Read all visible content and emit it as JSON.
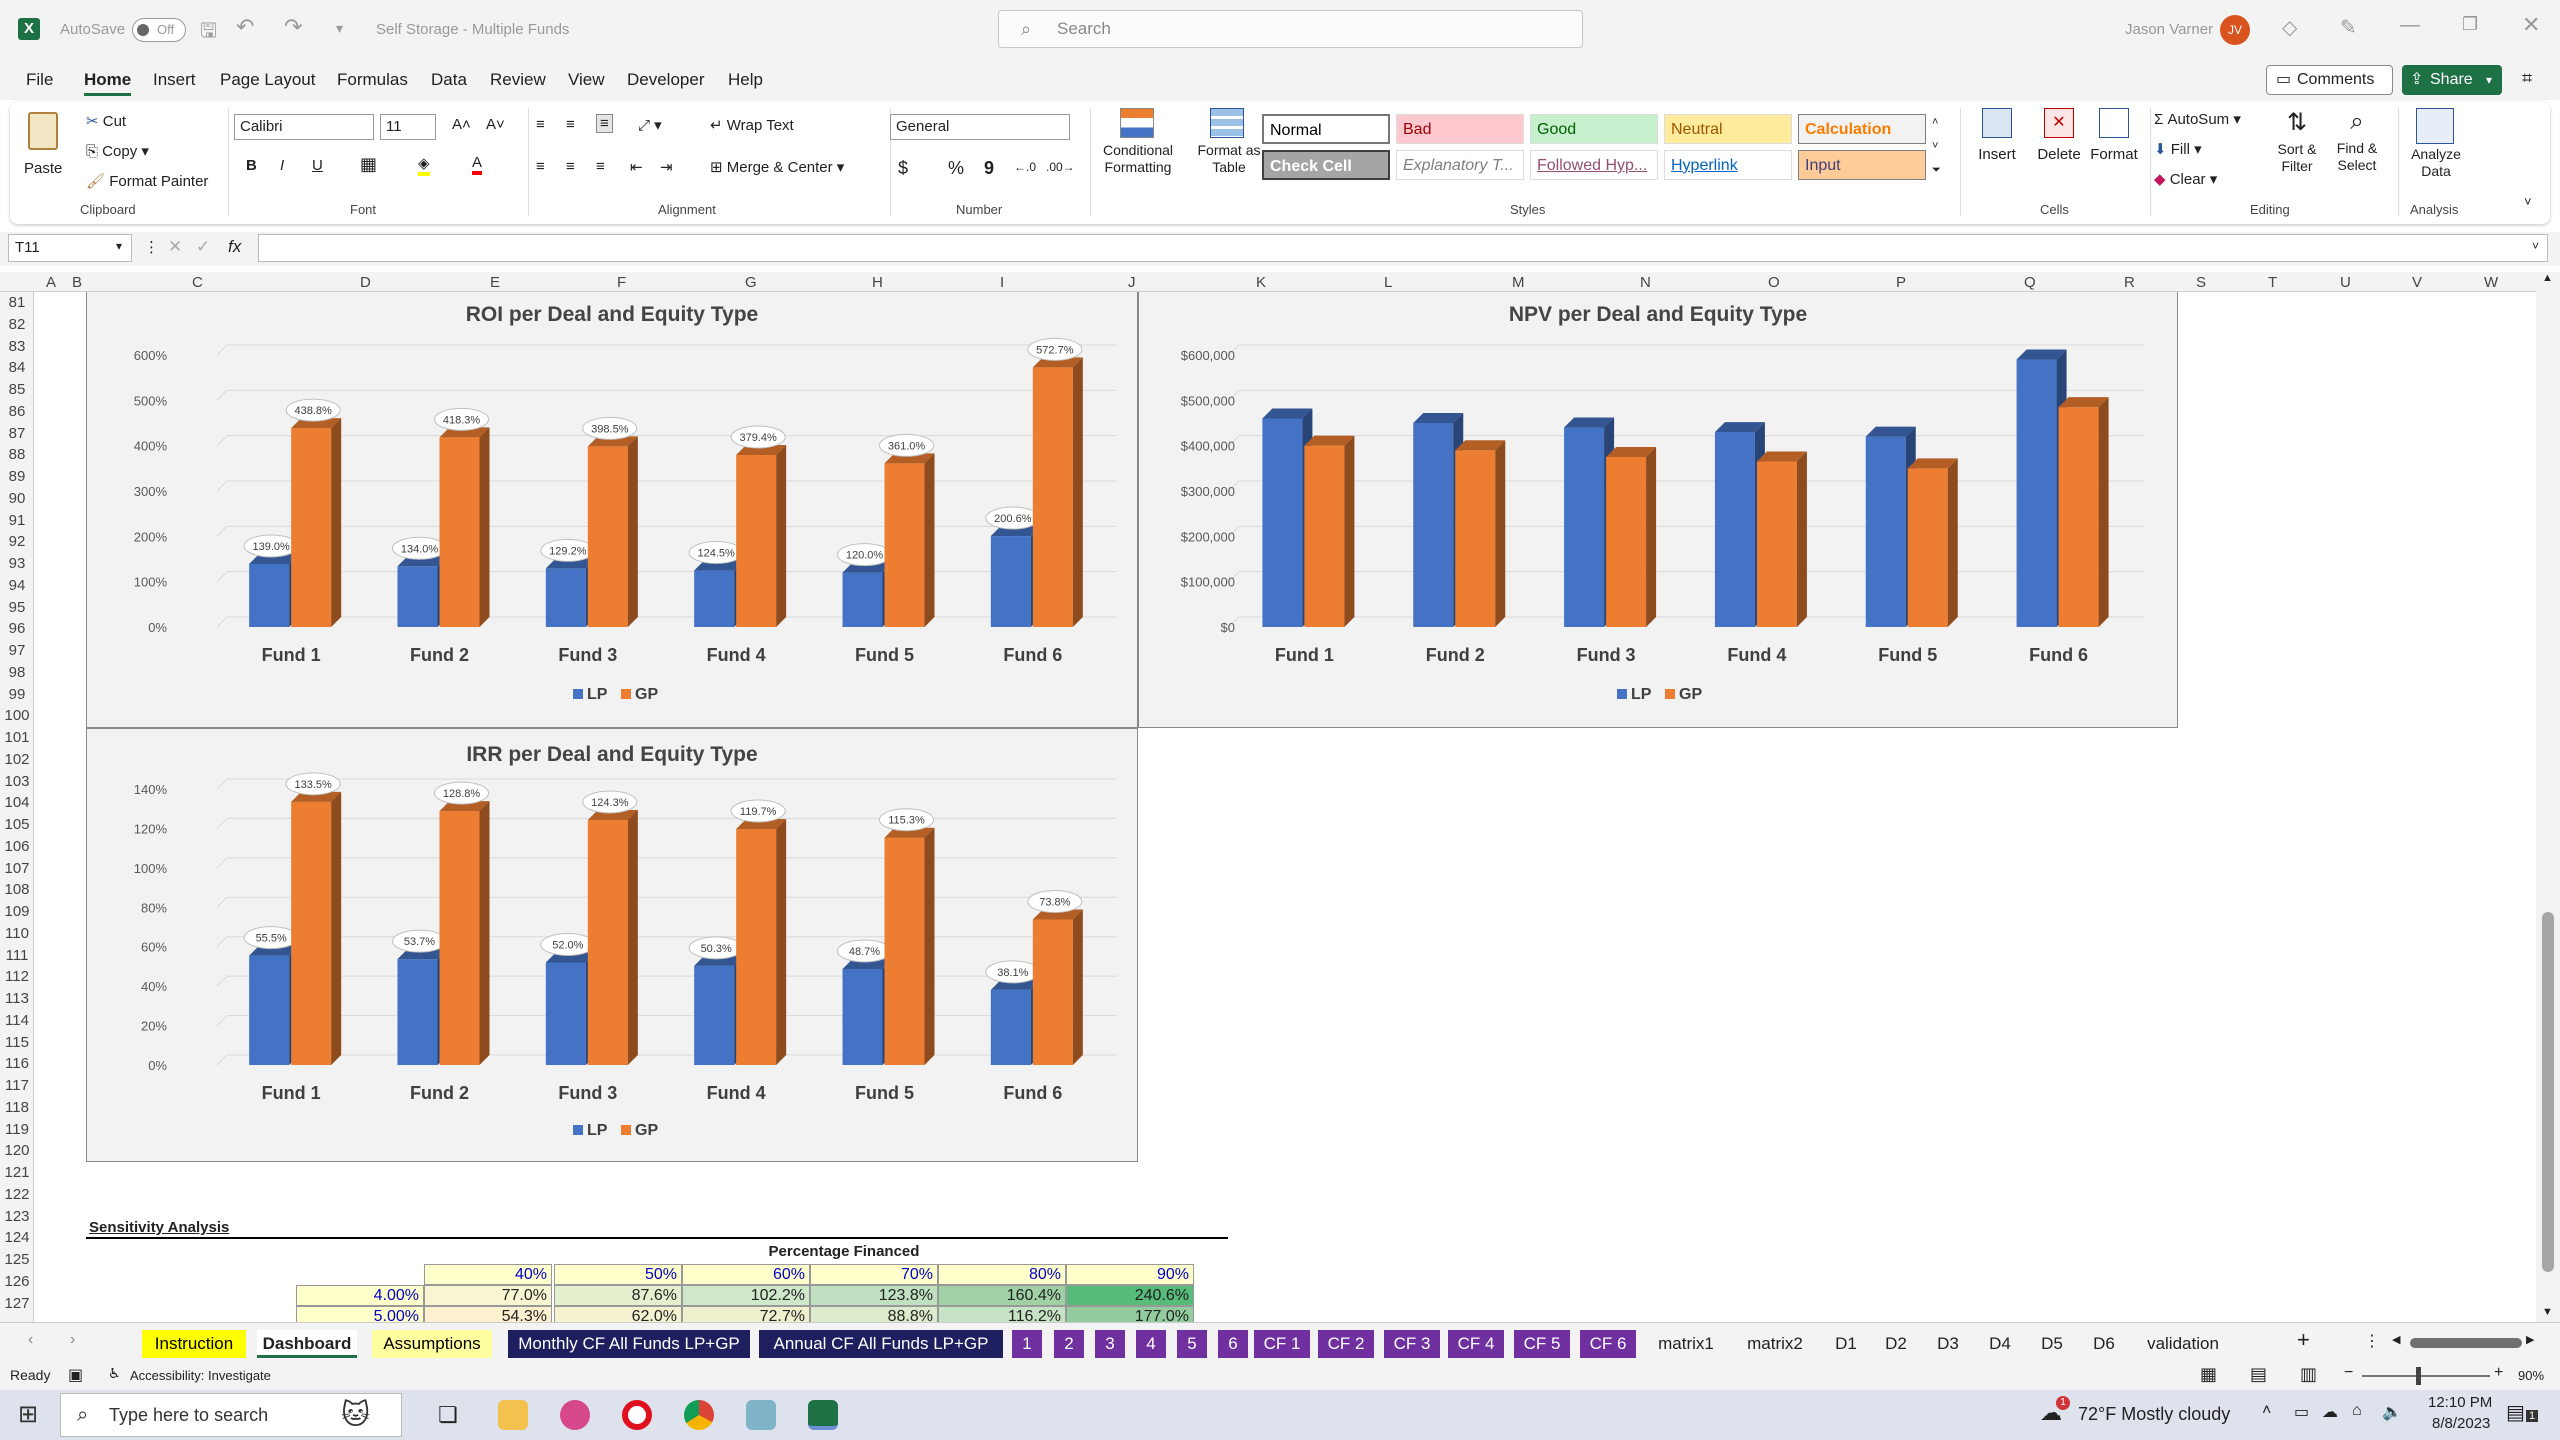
{
  "app": {
    "autosave_label": "AutoSave",
    "autosave_state": "Off",
    "doc_title": "Self Storage - Multiple Funds",
    "search_placeholder": "Search",
    "user_name": "Jason Varner",
    "user_initials": "JV"
  },
  "menu": [
    "File",
    "Home",
    "Insert",
    "Page Layout",
    "Formulas",
    "Data",
    "Review",
    "View",
    "Developer",
    "Help"
  ],
  "menu_active": "Home",
  "actions": {
    "comments": "Comments",
    "share": "Share"
  },
  "ribbon": {
    "clipboard": {
      "paste": "Paste",
      "cut": "Cut",
      "copy": "Copy",
      "format_painter": "Format Painter",
      "group": "Clipboard"
    },
    "font": {
      "name": "Calibri",
      "size": "11",
      "group": "Font",
      "bold": "B",
      "italic": "I",
      "underline": "U"
    },
    "alignment": {
      "wrap": "Wrap Text",
      "merge": "Merge & Center",
      "group": "Alignment"
    },
    "number": {
      "format": "General",
      "group": "Number",
      "dollar": "$",
      "percent": "%",
      "comma": "9"
    },
    "styles": {
      "conditional": "Conditional Formatting",
      "format_table": "Format as Table",
      "group": "Styles",
      "cells": [
        {
          "label": "Normal",
          "bg": "#ffffff",
          "fg": "#000000"
        },
        {
          "label": "Bad",
          "bg": "#ffc7ce",
          "fg": "#9c0006"
        },
        {
          "label": "Good",
          "bg": "#c6efce",
          "fg": "#006100"
        },
        {
          "label": "Neutral",
          "bg": "#ffeb9c",
          "fg": "#9c5700"
        },
        {
          "label": "Calculation",
          "bg": "#f2f2f2",
          "fg": "#fa7d00"
        },
        {
          "label": "Check Cell",
          "bg": "#a5a5a5",
          "fg": "#ffffff"
        },
        {
          "label": "Explanatory T...",
          "bg": "#ffffff",
          "fg": "#7f7f7f"
        },
        {
          "label": "Followed Hyp...",
          "bg": "#ffffff",
          "fg": "#954f72"
        },
        {
          "label": "Hyperlink",
          "bg": "#ffffff",
          "fg": "#0563c1"
        },
        {
          "label": "Input",
          "bg": "#ffcc99",
          "fg": "#3f3f76"
        }
      ]
    },
    "cells": {
      "insert": "Insert",
      "delete": "Delete",
      "format": "Format",
      "group": "Cells"
    },
    "editing": {
      "autosum": "AutoSum",
      "fill": "Fill",
      "clear": "Clear",
      "sort": "Sort & Filter",
      "find": "Find & Select",
      "group": "Editing"
    },
    "analysis": {
      "analyze": "Analyze Data",
      "group": "Analysis"
    }
  },
  "formula_bar": {
    "name_box": "T11",
    "fx": "fx",
    "content": ""
  },
  "columns": [
    "A",
    "B",
    "C",
    "D",
    "E",
    "F",
    "G",
    "H",
    "I",
    "J",
    "K",
    "L",
    "M",
    "N",
    "O",
    "P",
    "Q",
    "R",
    "S",
    "T",
    "U",
    "V",
    "W"
  ],
  "rows": [
    "81",
    "82",
    "83",
    "84",
    "85",
    "86",
    "87",
    "88",
    "89",
    "90",
    "91",
    "92",
    "93",
    "94",
    "95",
    "96",
    "97",
    "98",
    "99",
    "100",
    "101",
    "102",
    "103",
    "104",
    "105",
    "106",
    "107",
    "108",
    "109",
    "110",
    "111",
    "112",
    "113",
    "114",
    "115",
    "116",
    "117",
    "118",
    "119",
    "120",
    "121",
    "122",
    "123",
    "124",
    "125",
    "126",
    "127"
  ],
  "chart_data": [
    {
      "type": "bar",
      "title": "ROI per Deal and Equity Type",
      "categories": [
        "Fund 1",
        "Fund 2",
        "Fund 3",
        "Fund 4",
        "Fund 5",
        "Fund 6"
      ],
      "series": [
        {
          "name": "LP",
          "color": "#4472c4",
          "values": [
            139.0,
            134.0,
            129.2,
            124.5,
            120.0,
            200.6
          ]
        },
        {
          "name": "GP",
          "color": "#ed7d31",
          "values": [
            438.8,
            418.3,
            398.5,
            379.4,
            361.0,
            572.7
          ]
        }
      ],
      "data_labels": {
        "LP": [
          "139.0%",
          "134.0%",
          "129.2%",
          "124.5%",
          "120.0%",
          "200.6%"
        ],
        "GP": [
          "438.8%",
          "418.3%",
          "398.5%",
          "379.4%",
          "361.0%",
          "572.7%"
        ]
      },
      "yticks": [
        "0%",
        "100%",
        "200%",
        "300%",
        "400%",
        "500%",
        "600%"
      ],
      "ylim": [
        0,
        600
      ],
      "legend": "bottom"
    },
    {
      "type": "bar",
      "title": "NPV per Deal and Equity Type",
      "categories": [
        "Fund 1",
        "Fund 2",
        "Fund 3",
        "Fund 4",
        "Fund 5",
        "Fund 6"
      ],
      "series": [
        {
          "name": "LP",
          "color": "#4472c4",
          "values": [
            460000,
            450000,
            440000,
            430000,
            420000,
            590000
          ]
        },
        {
          "name": "GP",
          "color": "#ed7d31",
          "values": [
            400000,
            390000,
            375000,
            365000,
            350000,
            485000
          ]
        }
      ],
      "yticks": [
        "$0",
        "$100,000",
        "$200,000",
        "$300,000",
        "$400,000",
        "$500,000",
        "$600,000"
      ],
      "ylim": [
        0,
        600000
      ],
      "legend": "bottom"
    },
    {
      "type": "bar",
      "title": "IRR per Deal and Equity Type",
      "categories": [
        "Fund 1",
        "Fund 2",
        "Fund 3",
        "Fund 4",
        "Fund 5",
        "Fund 6"
      ],
      "series": [
        {
          "name": "LP",
          "color": "#4472c4",
          "values": [
            55.5,
            53.7,
            52.0,
            50.3,
            48.7,
            38.1
          ]
        },
        {
          "name": "GP",
          "color": "#ed7d31",
          "values": [
            133.5,
            128.8,
            124.3,
            119.7,
            115.3,
            73.8
          ]
        }
      ],
      "data_labels": {
        "LP": [
          "55.5%",
          "53.7%",
          "52.0%",
          "50.3%",
          "48.7%",
          "38.1%"
        ],
        "GP": [
          "133.5%",
          "128.8%",
          "124.3%",
          "119.7%",
          "115.3%",
          "73.8%"
        ]
      },
      "yticks": [
        "0%",
        "20%",
        "40%",
        "60%",
        "80%",
        "100%",
        "120%",
        "140%"
      ],
      "ylim": [
        0,
        140
      ],
      "legend": "bottom"
    }
  ],
  "sensitivity": {
    "title": "Sensitivity Analysis",
    "header": "Percentage Financed",
    "columns": [
      "40%",
      "50%",
      "60%",
      "70%",
      "80%",
      "90%"
    ],
    "rows": [
      {
        "label": "4.00%",
        "values": [
          "77.0%",
          "87.6%",
          "102.2%",
          "123.8%",
          "160.4%",
          "240.6%"
        ],
        "colors": [
          "#f8f6d2",
          "#e4efce",
          "#d0e8ca",
          "#bfe0c1",
          "#9fd1a5",
          "#57bb7a"
        ]
      },
      {
        "label": "5.00%",
        "values": [
          "54.3%",
          "62.0%",
          "72.7%",
          "88.8%",
          "116.2%",
          "177.0%"
        ],
        "colors": [
          "#fdf1d0",
          "#f5f2cf",
          "#eef0ce",
          "#dcebcc",
          "#c7e3c5",
          "#93cd9f"
        ]
      }
    ]
  },
  "tabs": [
    {
      "label": "Instruction",
      "bg": "#ffff00",
      "fg": "#000000"
    },
    {
      "label": "Dashboard",
      "bg": "#ffffff",
      "fg": "#1e7145",
      "active": true
    },
    {
      "label": "Assumptions",
      "bg": "#ffffa0",
      "fg": "#000000"
    },
    {
      "label": "Monthly CF All Funds LP+GP",
      "bg": "#1f1f5f",
      "fg": "#ffffff"
    },
    {
      "label": "Annual CF All Funds LP+GP",
      "bg": "#1f1f5f",
      "fg": "#ffffff"
    },
    {
      "label": "1",
      "bg": "#7030a0",
      "fg": "#ffffff"
    },
    {
      "label": "2",
      "bg": "#7030a0",
      "fg": "#ffffff"
    },
    {
      "label": "3",
      "bg": "#7030a0",
      "fg": "#ffffff"
    },
    {
      "label": "4",
      "bg": "#7030a0",
      "fg": "#ffffff"
    },
    {
      "label": "5",
      "bg": "#7030a0",
      "fg": "#ffffff"
    },
    {
      "label": "6",
      "bg": "#7030a0",
      "fg": "#ffffff"
    },
    {
      "label": "CF 1",
      "bg": "#7030a0",
      "fg": "#ffffff"
    },
    {
      "label": "CF 2",
      "bg": "#7030a0",
      "fg": "#ffffff"
    },
    {
      "label": "CF 3",
      "bg": "#7030a0",
      "fg": "#ffffff"
    },
    {
      "label": "CF 4",
      "bg": "#7030a0",
      "fg": "#ffffff"
    },
    {
      "label": "CF 5",
      "bg": "#7030a0",
      "fg": "#ffffff"
    },
    {
      "label": "CF 6",
      "bg": "#7030a0",
      "fg": "#ffffff"
    },
    {
      "label": "matrix1",
      "bg": "transparent",
      "fg": "#222222"
    },
    {
      "label": "matrix2",
      "bg": "transparent",
      "fg": "#222222"
    },
    {
      "label": "D1",
      "bg": "transparent",
      "fg": "#222222"
    },
    {
      "label": "D2",
      "bg": "transparent",
      "fg": "#222222"
    },
    {
      "label": "D3",
      "bg": "transparent",
      "fg": "#222222"
    },
    {
      "label": "D4",
      "bg": "transparent",
      "fg": "#222222"
    },
    {
      "label": "D5",
      "bg": "transparent",
      "fg": "#222222"
    },
    {
      "label": "D6",
      "bg": "transparent",
      "fg": "#222222"
    },
    {
      "label": "validation",
      "bg": "transparent",
      "fg": "#222222"
    }
  ],
  "status": {
    "ready": "Ready",
    "accessibility": "Accessibility: Investigate",
    "zoom": "90%"
  },
  "taskbar": {
    "search_placeholder": "Type here to search",
    "weather": "72°F  Mostly cloudy",
    "time": "12:10 PM",
    "date": "8/8/2023",
    "notification_count": "1"
  }
}
